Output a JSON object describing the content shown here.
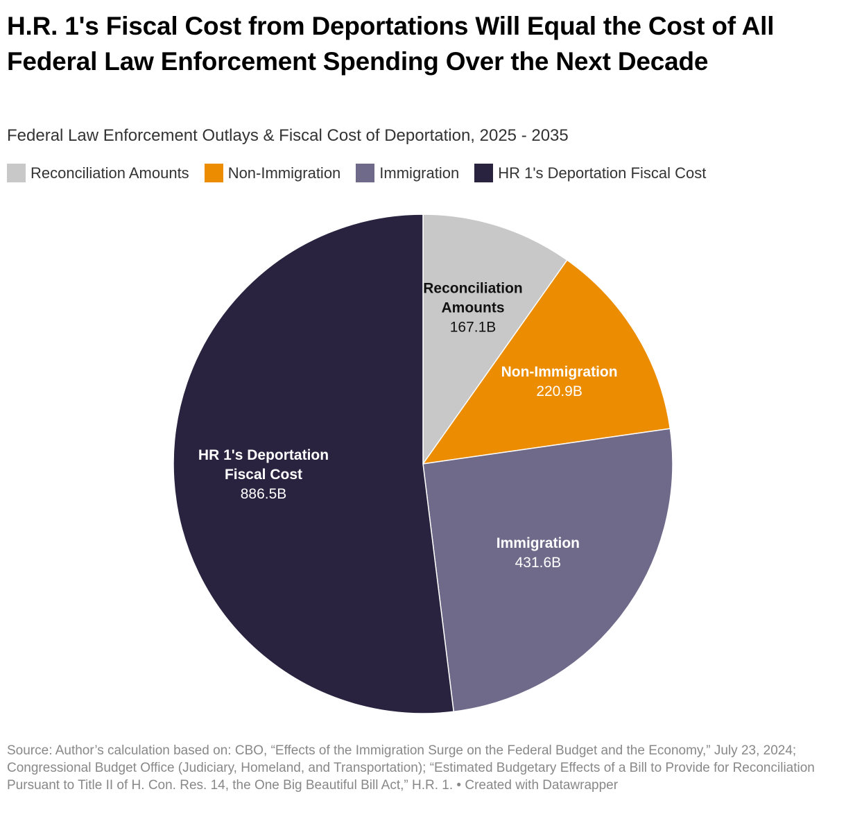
{
  "header": {
    "title": "H.R. 1's Fiscal Cost from Deportations Will Equal the Cost of All Federal Law Enforcement Spending Over the Next Decade",
    "subtitle": "Federal Law Enforcement Outlays & Fiscal Cost of Deportation, 2025 - 2035"
  },
  "legend": {
    "items": [
      {
        "label": "Reconciliation Amounts",
        "color": "#c8c8c8"
      },
      {
        "label": "Non-Immigration",
        "color": "#ec8c00"
      },
      {
        "label": "Immigration",
        "color": "#6f6a8a"
      },
      {
        "label": "HR 1's Deportation Fiscal Cost",
        "color": "#29233f"
      }
    ]
  },
  "chart_data": {
    "type": "pie",
    "title": "H.R. 1's Fiscal Cost from Deportations Will Equal the Cost of All Federal Law Enforcement Spending Over the Next Decade",
    "subtitle": "Federal Law Enforcement Outlays & Fiscal Cost of Deportation, 2025 - 2035",
    "unit": "B",
    "legend_position": "top",
    "slices": [
      {
        "name": "Reconciliation Amounts",
        "label_lines": [
          "Reconciliation",
          "Amounts"
        ],
        "value": 167.1,
        "value_label": "167.1B",
        "color": "#c8c8c8",
        "text_color": "#111111"
      },
      {
        "name": "Non-Immigration",
        "label_lines": [
          "Non-Immigration"
        ],
        "value": 220.9,
        "value_label": "220.9B",
        "color": "#ec8c00",
        "text_color": "#ffffff"
      },
      {
        "name": "Immigration",
        "label_lines": [
          "Immigration"
        ],
        "value": 431.6,
        "value_label": "431.6B",
        "color": "#6f6a8a",
        "text_color": "#ffffff"
      },
      {
        "name": "HR 1's Deportation Fiscal Cost",
        "label_lines": [
          "HR 1's Deportation",
          "Fiscal Cost"
        ],
        "value": 886.5,
        "value_label": "886.5B",
        "color": "#29233f",
        "text_color": "#ffffff"
      }
    ]
  },
  "footer": {
    "source": "Source: Author’s calculation based on: CBO, “Effects of the Immigration Surge on the Federal Budget and the Economy,” July 23, 2024; Congressional Budget Office (Judiciary, Homeland, and Transportation); “Estimated Budgetary Effects of a Bill to Provide for Reconciliation Pursuant to Title II of H. Con. Res. 14, the One Big Beautiful Bill Act,” H.R. 1. • Created with Datawrapper"
  }
}
